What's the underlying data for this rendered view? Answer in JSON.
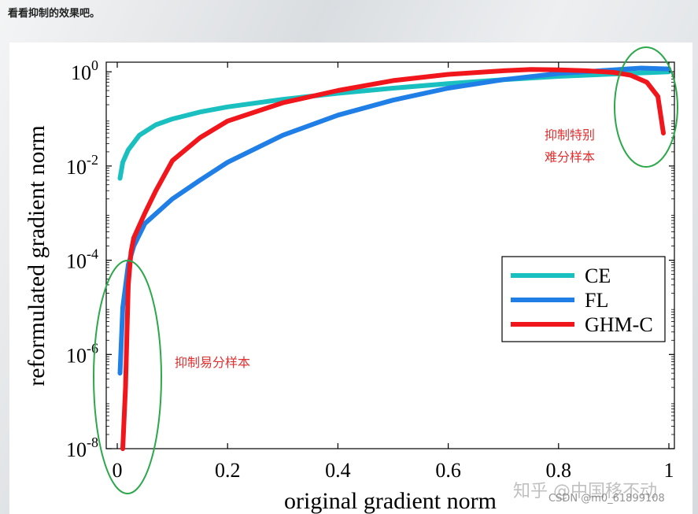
{
  "page": {
    "header_text": "看看抑制的效果吧。",
    "watermark": "知乎 @中国移不动",
    "csdn_watermark": "CSDN @m0_61899108"
  },
  "chart_data": {
    "type": "line",
    "title": "",
    "xlabel": "original gradient norm",
    "ylabel": "reformulated gradient norm",
    "xscale": "linear",
    "yscale": "log",
    "xlim": [
      -0.02,
      1.01
    ],
    "ylim": [
      1e-08,
      1.6
    ],
    "xticks": [
      0,
      0.2,
      0.4,
      0.6,
      0.8,
      1
    ],
    "xtick_labels": [
      "0",
      "0.2",
      "0.4",
      "0.6",
      "0.8",
      "1"
    ],
    "yticks": [
      1e-08,
      1e-06,
      0.0001,
      0.01,
      1
    ],
    "ytick_labels": [
      {
        "base": "10",
        "exp": "-8"
      },
      {
        "base": "10",
        "exp": "-6"
      },
      {
        "base": "10",
        "exp": "-4"
      },
      {
        "base": "10",
        "exp": "-2"
      },
      {
        "base": "10",
        "exp": "0"
      }
    ],
    "grid": false,
    "legend_position": "right",
    "series": [
      {
        "name": "CE",
        "color": "#1abfbf",
        "points": [
          [
            0.005,
            0.0055
          ],
          [
            0.01,
            0.012
          ],
          [
            0.02,
            0.022
          ],
          [
            0.04,
            0.045
          ],
          [
            0.07,
            0.075
          ],
          [
            0.1,
            0.1
          ],
          [
            0.15,
            0.14
          ],
          [
            0.2,
            0.18
          ],
          [
            0.3,
            0.26
          ],
          [
            0.4,
            0.35
          ],
          [
            0.5,
            0.45
          ],
          [
            0.6,
            0.56
          ],
          [
            0.7,
            0.68
          ],
          [
            0.8,
            0.8
          ],
          [
            0.9,
            0.9
          ],
          [
            1.0,
            1.0
          ]
        ]
      },
      {
        "name": "FL",
        "color": "#1f7fe6",
        "points": [
          [
            0.005,
            4e-07
          ],
          [
            0.01,
            1e-05
          ],
          [
            0.02,
            8e-05
          ],
          [
            0.03,
            0.0002
          ],
          [
            0.05,
            0.0006
          ],
          [
            0.1,
            0.002
          ],
          [
            0.15,
            0.005
          ],
          [
            0.2,
            0.012
          ],
          [
            0.3,
            0.045
          ],
          [
            0.4,
            0.12
          ],
          [
            0.5,
            0.25
          ],
          [
            0.6,
            0.45
          ],
          [
            0.7,
            0.68
          ],
          [
            0.8,
            0.92
          ],
          [
            0.9,
            1.1
          ],
          [
            0.95,
            1.2
          ],
          [
            1.0,
            1.15
          ]
        ]
      },
      {
        "name": "GHM-C",
        "color": "#f0161c",
        "points": [
          [
            0.01,
            1e-08
          ],
          [
            0.015,
            2e-07
          ],
          [
            0.02,
            3e-05
          ],
          [
            0.025,
            0.00015
          ],
          [
            0.03,
            0.0003
          ],
          [
            0.05,
            0.001
          ],
          [
            0.07,
            0.003
          ],
          [
            0.1,
            0.013
          ],
          [
            0.15,
            0.04
          ],
          [
            0.2,
            0.09
          ],
          [
            0.3,
            0.22
          ],
          [
            0.4,
            0.4
          ],
          [
            0.5,
            0.65
          ],
          [
            0.6,
            0.88
          ],
          [
            0.7,
            1.05
          ],
          [
            0.75,
            1.12
          ],
          [
            0.8,
            1.1
          ],
          [
            0.85,
            1.05
          ],
          [
            0.9,
            0.97
          ],
          [
            0.93,
            0.85
          ],
          [
            0.96,
            0.6
          ],
          [
            0.98,
            0.3
          ],
          [
            0.99,
            0.05
          ]
        ]
      }
    ],
    "annotations": [
      {
        "text": "抑制特别",
        "line2": "难分样本",
        "color": "#e03030"
      },
      {
        "text": "抑制易分样本",
        "color": "#e03030"
      }
    ],
    "ellipse_color": "#2aa84a"
  }
}
